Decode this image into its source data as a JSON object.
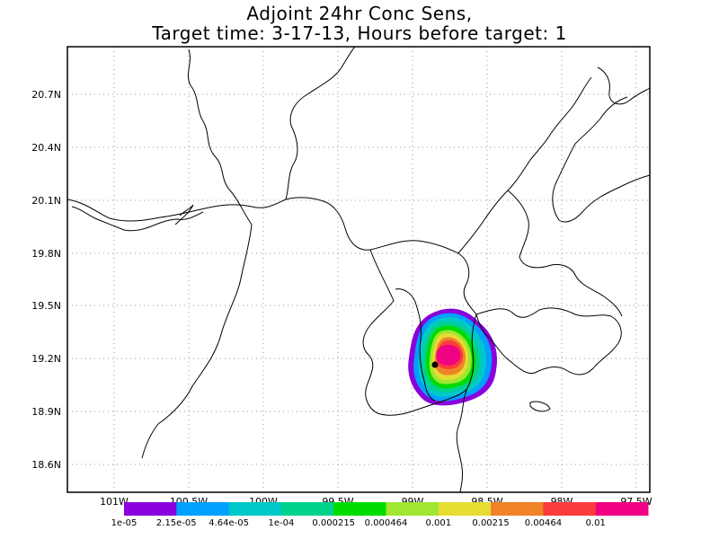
{
  "title": {
    "line1": "Adjoint 24hr Conc Sens,",
    "line2": "Target time: 3-17-13, Hours before target: 1"
  },
  "map": {
    "lat_ticks": [
      "20.7N",
      "20.4N",
      "20.1N",
      "19.8N",
      "19.5N",
      "19.2N",
      "18.9N",
      "18.6N"
    ],
    "lon_ticks": [
      "101W",
      "100.5W",
      "100W",
      "99.5W",
      "99W",
      "98.5W",
      "98W",
      "97.5W"
    ]
  },
  "colorbar": {
    "labels": [
      "1e-05",
      "2.15e-05",
      "4.64e-05",
      "1e-04",
      "0.000215",
      "0.000464",
      "0.001",
      "0.00215",
      "0.00464",
      "0.01"
    ],
    "colors": [
      "#8a00dc",
      "#00a0ff",
      "#00c8c8",
      "#00d28c",
      "#00dc00",
      "#a0e632",
      "#e6dc32",
      "#f08228",
      "#fa3c3c",
      "#f00082"
    ]
  }
}
